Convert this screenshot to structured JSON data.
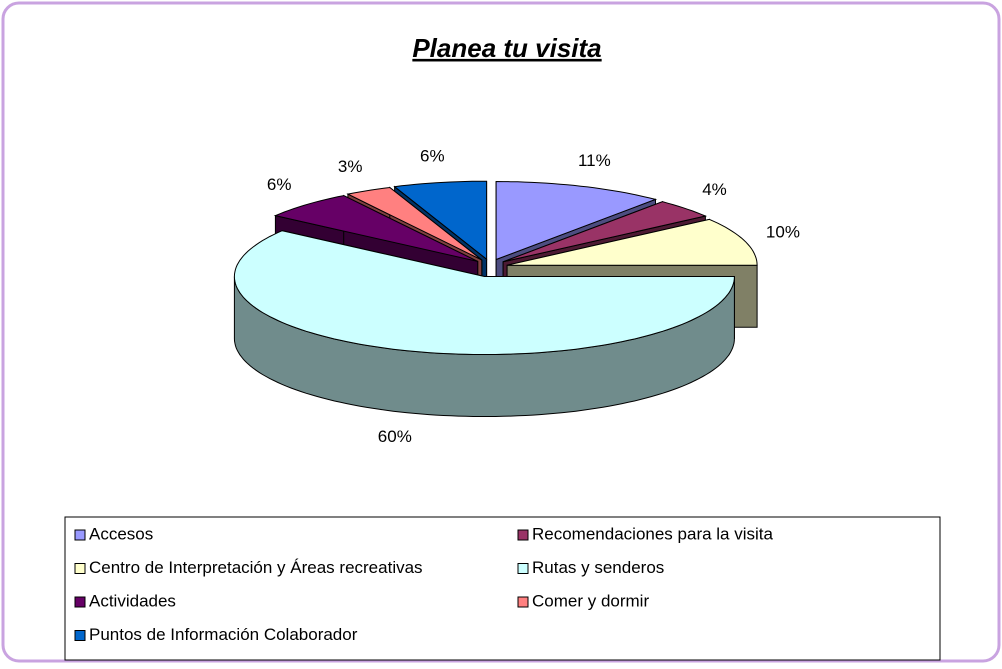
{
  "chart_data": {
    "type": "pie",
    "title": "Planea tu visita",
    "categories": [
      "Accesos",
      "Recomendaciones para la visita",
      "Centro de Interpretación y Áreas recreativas",
      "Rutas y senderos",
      "Actividades",
      "Comer y dormir",
      "Puntos de Información Colaborador"
    ],
    "values": [
      11,
      4,
      10,
      60,
      6,
      3,
      6
    ],
    "value_labels": [
      "11%",
      "4%",
      "10%",
      "60%",
      "6%",
      "3%",
      "6%"
    ],
    "colors": [
      "#9999ff",
      "#993366",
      "#ffffcc",
      "#ccffff",
      "#660066",
      "#ff8080",
      "#0066cc"
    ],
    "legend": "bottom"
  }
}
